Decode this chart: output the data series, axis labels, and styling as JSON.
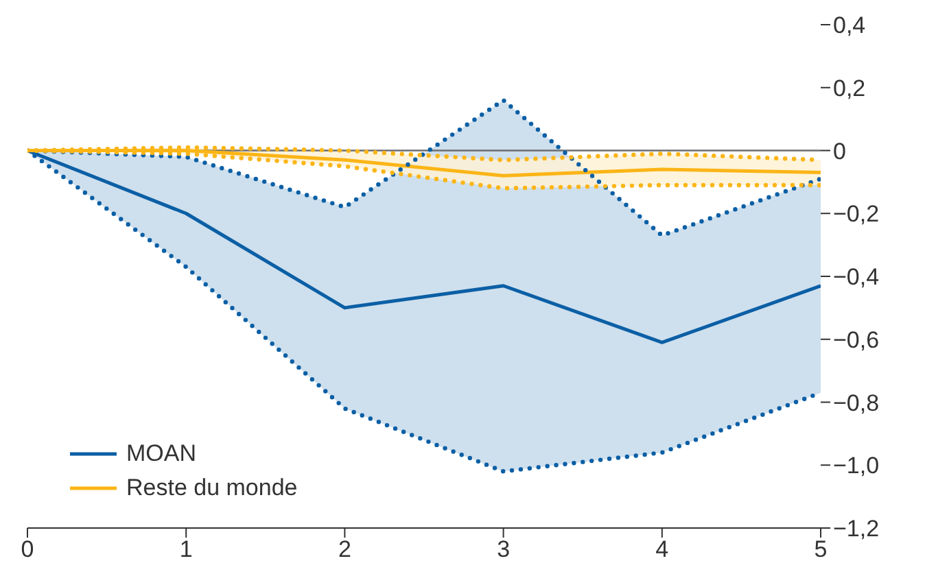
{
  "chart_data": {
    "type": "line",
    "x": [
      0,
      1,
      2,
      3,
      4,
      5
    ],
    "series": [
      {
        "name": "MOAN",
        "color": "#0b5fa5",
        "values": [
          0,
          -0.2,
          -0.5,
          -0.43,
          -0.61,
          -0.43
        ],
        "lower": [
          0,
          -0.37,
          -0.82,
          -1.02,
          -0.96,
          -0.77
        ],
        "upper": [
          0,
          -0.02,
          -0.18,
          0.16,
          -0.27,
          -0.09
        ]
      },
      {
        "name": "Reste du monde",
        "color": "#fbb517",
        "values": [
          0,
          0,
          -0.03,
          -0.08,
          -0.06,
          -0.07
        ],
        "lower": [
          0,
          -0.01,
          -0.05,
          -0.12,
          -0.11,
          -0.11
        ],
        "upper": [
          0,
          0.01,
          0,
          -0.03,
          -0.01,
          -0.03
        ]
      },
      {
        "color": "#0b5fa5",
        "line_style": "dotted",
        "values": [
          0,
          -0.02,
          -0.18,
          0.16,
          -0.27,
          -0.09
        ]
      },
      {
        "color": "#0b5fa5",
        "line_style": "dotted",
        "values": [
          0,
          -0.37,
          -0.82,
          -1.02,
          -0.96,
          -0.77
        ]
      },
      {
        "color": "#fbb517",
        "line_style": "dotted",
        "values": [
          0,
          0.01,
          0,
          -0.03,
          -0.01,
          -0.03
        ]
      },
      {
        "color": "#fbb517",
        "line_style": "dotted",
        "values": [
          0,
          -0.01,
          -0.05,
          -0.12,
          -0.11,
          -0.11
        ]
      }
    ],
    "xlim": [
      0,
      5
    ],
    "xticks": [
      0,
      1,
      2,
      3,
      4,
      5
    ],
    "ylim": [
      -1.2,
      0.4
    ],
    "yticks": [
      {
        "value": -1.2,
        "label": "−1,2"
      },
      {
        "value": -1,
        "label": "−1,0"
      },
      {
        "value": -0.8,
        "label": "−0,8"
      },
      {
        "value": -0.6,
        "label": "−0,6"
      },
      {
        "value": -0.4,
        "label": "−0,4"
      },
      {
        "value": -0.2,
        "label": "−0,2"
      },
      0,
      {
        "value": 0.2,
        "label": "0,2"
      },
      {
        "value": 0.4,
        "label": "0,4"
      }
    ],
    "ref_lines": [
      {
        "axis": "y",
        "value": 0,
        "color": "#6d6e70"
      }
    ],
    "legend": "bottom left",
    "line_style": "solid",
    "marker": "none"
  }
}
